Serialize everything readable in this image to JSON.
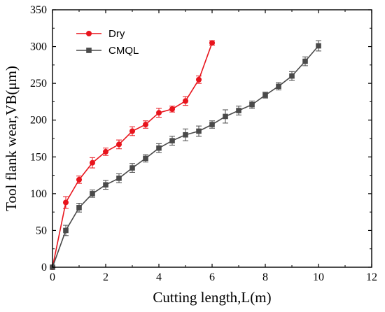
{
  "chart_data": {
    "type": "line",
    "title": "",
    "xlabel": "Cutting length,L(m)",
    "ylabel": "Tool flank wear,VB(μm)",
    "xlim": [
      0,
      12
    ],
    "ylim": [
      0,
      350
    ],
    "xticks": [
      0,
      2,
      4,
      6,
      8,
      10,
      12
    ],
    "yticks": [
      0,
      50,
      100,
      150,
      200,
      250,
      300,
      350
    ],
    "grid": false,
    "legend": "top-left",
    "series": [
      {
        "name": "Dry",
        "color": "#e8141c",
        "marker": "circle",
        "x": [
          0,
          0.5,
          1,
          1.5,
          2,
          2.5,
          3,
          3.5,
          4,
          4.5,
          5,
          5.5,
          6
        ],
        "y": [
          0,
          88,
          119,
          142,
          157,
          167,
          185,
          194,
          210,
          215,
          226,
          255,
          305
        ],
        "err": [
          0,
          8,
          5,
          7,
          5,
          6,
          6,
          5,
          6,
          4,
          6,
          5,
          3
        ]
      },
      {
        "name": "CMQL",
        "color": "#4a4a4a",
        "marker": "square",
        "x": [
          0,
          0.5,
          1,
          1.5,
          2,
          2.5,
          3,
          3.5,
          4,
          4.5,
          5,
          5.5,
          6,
          6.5,
          7,
          7.5,
          8,
          8.5,
          9,
          9.5,
          10
        ],
        "y": [
          0,
          50,
          81,
          100,
          112,
          121,
          135,
          148,
          162,
          172,
          180,
          185,
          194,
          205,
          213,
          221,
          234,
          246,
          260,
          280,
          301
        ],
        "err": [
          0,
          7,
          6,
          5,
          6,
          6,
          6,
          5,
          6,
          6,
          8,
          7,
          5,
          9,
          6,
          5,
          4,
          5,
          6,
          6,
          7
        ]
      }
    ]
  }
}
